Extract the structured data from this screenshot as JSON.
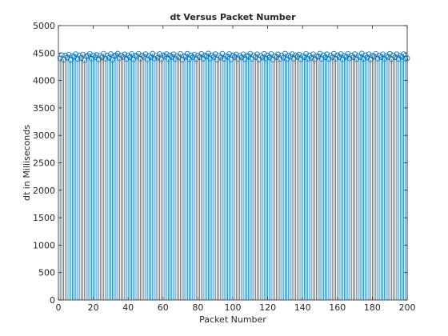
{
  "chart_data": {
    "type": "stem",
    "title": "dt Versus Packet Number",
    "xlabel": "Packet Number",
    "ylabel": "dt in Milliseconds",
    "xlim": [
      0,
      200
    ],
    "ylim": [
      0,
      5000
    ],
    "xticks": [
      0,
      20,
      40,
      60,
      80,
      100,
      120,
      140,
      160,
      180,
      200
    ],
    "yticks": [
      0,
      500,
      1000,
      1500,
      2000,
      2500,
      3000,
      3500,
      4000,
      4500,
      5000
    ],
    "grid": false,
    "box": true,
    "marker": "circle",
    "series_color": "#0072BD",
    "x_start": 1,
    "x_step": 1,
    "values": [
      4403,
      4462,
      4381,
      4457,
      4418,
      4472,
      4374,
      4448,
      4432,
      4481,
      4392,
      4455,
      4407,
      4472,
      4369,
      4443,
      4451,
      4486,
      4398,
      4459,
      4426,
      4465,
      4385,
      4450,
      4420,
      4488,
      4397,
      4455,
      4412,
      4482,
      4378,
      4449,
      4458,
      4489,
      4402,
      4457,
      4428,
      4476,
      4392,
      4454,
      4425,
      4484,
      4385,
      4455,
      4444,
      4486,
      4398,
      4457,
      4430,
      4480,
      4384,
      4449,
      4421,
      4489,
      4399,
      4452,
      4416,
      4483,
      4388,
      4460,
      4444,
      4480,
      4395,
      4456,
      4429,
      4479,
      4393,
      4447,
      4422,
      4484,
      4379,
      4443,
      4435,
      4487,
      4392,
      4458,
      4423,
      4472,
      4390,
      4453,
      4423,
      4485,
      4396,
      4456,
      4442,
      4491,
      4400,
      4461,
      4430,
      4480,
      4380,
      4450,
      4415,
      4487,
      4396,
      4450,
      4433,
      4482,
      4384,
      4458,
      4429,
      4475,
      4395,
      4451,
      4419,
      4477,
      4389,
      4450,
      4443,
      4488,
      4391,
      4455,
      4427,
      4478,
      4383,
      4450,
      4417,
      4486,
      4400,
      4456,
      4420,
      4483,
      4380,
      4445,
      4428,
      4476,
      4391,
      4457,
      4414,
      4489,
      4388,
      4452,
      4437,
      4481,
      4395,
      4459,
      4434,
      4473,
      4387,
      4446,
      4423,
      4486,
      4398,
      4456,
      4410,
      4479,
      4386,
      4448,
      4438,
      4489,
      4393,
      4460,
      4420,
      4478,
      4392,
      4453,
      4418,
      4487,
      4396,
      4458,
      4427,
      4482,
      4386,
      4451,
      4431,
      4486,
      4402,
      4455,
      4421,
      4480,
      4389,
      4448,
      4425,
      4491,
      4394,
      4460,
      4417,
      4479,
      4385,
      4452,
      4440,
      4484,
      4399,
      4457,
      4424,
      4477,
      4393,
      4449,
      4427,
      4485,
      4390,
      4456,
      4423,
      4478,
      4391,
      4452,
      4431,
      4481,
      4398,
      4407
    ]
  }
}
